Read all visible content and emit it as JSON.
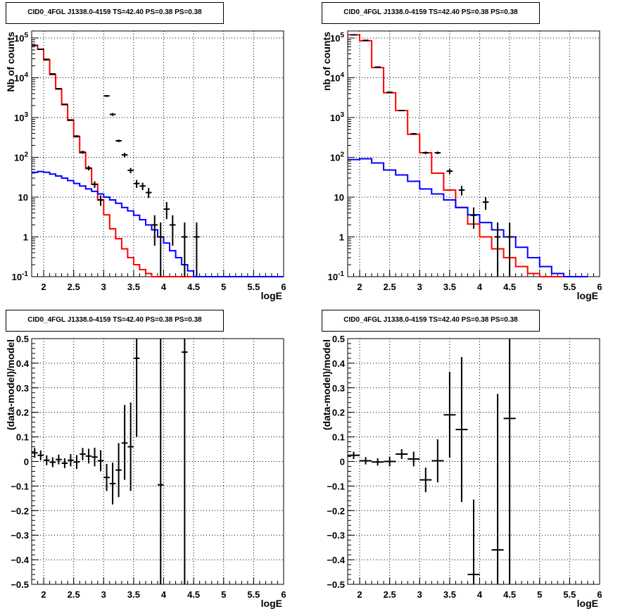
{
  "colors": {
    "data": "#000000",
    "total_model": "#ff0000",
    "component": "#0000ff",
    "grid": "#000000"
  },
  "chart_data": [
    {
      "type": "line",
      "title": "CID0_4FGL J1338.0-4159 TS=42.40 PS=0.38 PS=0.38",
      "xlabel": "logE",
      "ylabel": "Nb of counts",
      "xlim": [
        1.8,
        6.0
      ],
      "ylim": [
        0.1,
        150000
      ],
      "yscale": "log",
      "grid": true,
      "xticks": [
        "2",
        "2.5",
        "3",
        "3.5",
        "4",
        "4.5",
        "5",
        "5.5",
        "6"
      ],
      "yticks": [
        "10^-1",
        "1",
        "10",
        "10^2",
        "10^3",
        "10^4",
        "10^5"
      ],
      "hist_edges": [
        1.8,
        1.9,
        2.0,
        2.1,
        2.2,
        2.3,
        2.4,
        2.5,
        2.6,
        2.7,
        2.8,
        2.9,
        3.0,
        3.1,
        3.2,
        3.3,
        3.4,
        3.5,
        3.6,
        3.7,
        3.8,
        3.9,
        4.0,
        4.1,
        4.2,
        4.3,
        4.4,
        4.5,
        4.6,
        4.7,
        4.8,
        4.9,
        5.0,
        5.1,
        5.2,
        5.3,
        5.4,
        5.5,
        5.6,
        5.7,
        5.8,
        5.9,
        6.0
      ],
      "series": [
        {
          "name": "",
          "kind": "hist",
          "color": "#ff0000",
          "values": [
            65000,
            52000,
            28000,
            12000,
            5200,
            2100,
            850,
            330,
            130,
            52,
            21,
            8.5,
            3.6,
            1.6,
            0.9,
            0.5,
            0.3,
            0.2,
            0.15,
            0.12,
            0.1,
            0.1,
            0.1,
            0.1,
            0.1,
            0.1,
            0.1,
            0.1,
            0.1,
            0.1,
            0.1,
            0.1,
            0.1,
            0.1,
            0.1,
            0.1,
            0.1,
            0.1,
            0.1,
            0.1,
            0.1,
            0.1
          ]
        },
        {
          "name": "",
          "kind": "hist",
          "color": "#0000ff",
          "values": [
            42,
            44,
            42,
            38,
            34,
            30,
            26,
            22,
            19,
            16,
            14,
            12,
            10,
            8.5,
            7,
            5.5,
            4.5,
            3.5,
            2.7,
            2.0,
            1.5,
            1.0,
            0.7,
            0.45,
            0.3,
            0.2,
            0.14,
            0.1,
            0.1,
            0.1,
            0.1,
            0.1,
            0.1,
            0.1,
            0.1,
            0.1,
            0.1,
            0.1,
            0.1,
            0.1,
            0.1,
            0.1
          ]
        },
        {
          "name": "",
          "kind": "points",
          "color": "#000000",
          "points": [
            {
              "x": 1.85,
              "y": 65000,
              "lo": 64000,
              "hi": 66000
            },
            {
              "x": 1.95,
              "y": 52000,
              "lo": 51000,
              "hi": 53000
            },
            {
              "x": 2.05,
              "y": 29000,
              "lo": 28500,
              "hi": 29500
            },
            {
              "x": 2.15,
              "y": 12500,
              "lo": 12300,
              "hi": 12700
            },
            {
              "x": 2.25,
              "y": 5300,
              "lo": 5200,
              "hi": 5400
            },
            {
              "x": 2.35,
              "y": 2150,
              "lo": 2100,
              "hi": 2200
            },
            {
              "x": 2.45,
              "y": 870,
              "lo": 840,
              "hi": 900
            },
            {
              "x": 2.55,
              "y": 340,
              "lo": 320,
              "hi": 360
            },
            {
              "x": 2.65,
              "y": 135,
              "lo": 123,
              "hi": 147
            },
            {
              "x": 2.75,
              "y": 54,
              "lo": 47,
              "hi": 61
            },
            {
              "x": 2.85,
              "y": 21,
              "lo": 17,
              "hi": 25
            },
            {
              "x": 2.95,
              "y": 8.5,
              "lo": 6,
              "hi": 11
            },
            {
              "x": 3.05,
              "y": 3500,
              "lo": 3300,
              "hi": 3700
            },
            {
              "x": 3.15,
              "y": 1200,
              "lo": 1100,
              "hi": 1300
            },
            {
              "x": 3.25,
              "y": 260,
              "lo": 240,
              "hi": 280
            },
            {
              "x": 3.35,
              "y": 115,
              "lo": 100,
              "hi": 130
            },
            {
              "x": 3.45,
              "y": 47,
              "lo": 40,
              "hi": 54
            },
            {
              "x": 3.55,
              "y": 22,
              "lo": 17,
              "hi": 27
            },
            {
              "x": 3.65,
              "y": 19,
              "lo": 15,
              "hi": 23
            },
            {
              "x": 3.75,
              "y": 13,
              "lo": 9.5,
              "hi": 17
            },
            {
              "x": 3.85,
              "y": 2,
              "lo": 0.6,
              "hi": 3.5
            },
            {
              "x": 3.95,
              "y": 1,
              "lo": 0.1,
              "hi": 2.3
            },
            {
              "x": 4.05,
              "y": 5,
              "lo": 2.8,
              "hi": 7.5
            },
            {
              "x": 4.15,
              "y": 2,
              "lo": 0.6,
              "hi": 3.5
            },
            {
              "x": 4.35,
              "y": 1,
              "lo": 0.1,
              "hi": 2.3
            },
            {
              "x": 4.55,
              "y": 1,
              "lo": 0.1,
              "hi": 2.3
            }
          ]
        }
      ]
    },
    {
      "type": "line",
      "title": "CID0_4FGL J1338.0-4159 TS=42.40 PS=0.38 PS=0.38",
      "xlabel": "logE",
      "ylabel": "nb of counts",
      "xlim": [
        1.8,
        6.0
      ],
      "ylim": [
        0.1,
        150000
      ],
      "yscale": "log",
      "grid": true,
      "xticks": [
        "2",
        "2.5",
        "3",
        "3.5",
        "4",
        "4.5",
        "5",
        "5.5",
        "6"
      ],
      "yticks": [
        "10^-1",
        "1",
        "10",
        "10^2",
        "10^3",
        "10^4",
        "10^5"
      ],
      "hist_edges": [
        1.8,
        2.0,
        2.2,
        2.4,
        2.6,
        2.8,
        3.0,
        3.2,
        3.4,
        3.6,
        3.8,
        4.0,
        4.2,
        4.4,
        4.6,
        4.8,
        5.0,
        5.2,
        5.4,
        5.6,
        5.8,
        6.0
      ],
      "series": [
        {
          "name": "",
          "kind": "hist",
          "color": "#ff0000",
          "values": [
            120000,
            85000,
            18000,
            4200,
            1500,
            380,
            130,
            40,
            15,
            5.5,
            2.1,
            1.0,
            0.5,
            0.3,
            0.18,
            0.12,
            0.1,
            0.1,
            0.1,
            0.1
          ]
        },
        {
          "name": "",
          "kind": "hist",
          "color": "#0000ff",
          "values": [
            88,
            92,
            72,
            48,
            36,
            25,
            16,
            12,
            8.5,
            5.5,
            3.6,
            2.3,
            1.5,
            1.0,
            0.55,
            0.3,
            0.18,
            0.12,
            0.1,
            0.1
          ]
        },
        {
          "name": "",
          "kind": "points",
          "color": "#000000",
          "points": [
            {
              "x": 1.9,
              "y": 120000,
              "lo": 119000,
              "hi": 121000
            },
            {
              "x": 2.1,
              "y": 87000,
              "lo": 86000,
              "hi": 88000
            },
            {
              "x": 2.3,
              "y": 18500,
              "lo": 18300,
              "hi": 18700
            },
            {
              "x": 2.5,
              "y": 4300,
              "lo": 4200,
              "hi": 4400
            },
            {
              "x": 2.7,
              "y": 1500,
              "lo": 1460,
              "hi": 1540
            },
            {
              "x": 2.9,
              "y": 390,
              "lo": 370,
              "hi": 410
            },
            {
              "x": 3.1,
              "y": 130,
              "lo": 120,
              "hi": 140
            },
            {
              "x": 3.3,
              "y": 130,
              "lo": 120,
              "hi": 140
            },
            {
              "x": 3.5,
              "y": 45,
              "lo": 38,
              "hi": 52
            },
            {
              "x": 3.7,
              "y": 15,
              "lo": 11,
              "hi": 19
            },
            {
              "x": 3.9,
              "y": 3.5,
              "lo": 1.6,
              "hi": 5.5
            },
            {
              "x": 4.1,
              "y": 7.5,
              "lo": 4.8,
              "hi": 10
            },
            {
              "x": 4.3,
              "y": 1,
              "lo": 0.1,
              "hi": 2.3
            },
            {
              "x": 4.5,
              "y": 1,
              "lo": 0.1,
              "hi": 2.3
            }
          ]
        }
      ]
    },
    {
      "type": "scatter",
      "title": "CID0_4FGL J1338.0-4159 TS=42.40 PS=0.38 PS=0.38",
      "xlabel": "logE",
      "ylabel": "(data-model)/model",
      "xlim": [
        1.8,
        6.0
      ],
      "ylim": [
        -0.5,
        0.5
      ],
      "grid": true,
      "xticks": [
        "2",
        "2.5",
        "3",
        "3.5",
        "4",
        "4.5",
        "5",
        "5.5",
        "6"
      ],
      "yticks": [
        "−0.5",
        "−0.4",
        "−0.3",
        "−0.2",
        "−0.1",
        "0",
        "0.1",
        "0.2",
        "0.3",
        "0.4",
        "0.5"
      ],
      "series": [
        {
          "name": "",
          "color": "#000000",
          "xhalf": 0.05,
          "points": [
            {
              "x": 1.85,
              "y": 0.035,
              "lo": 0.015,
              "hi": 0.055
            },
            {
              "x": 1.95,
              "y": 0.025,
              "lo": 0.005,
              "hi": 0.045
            },
            {
              "x": 2.05,
              "y": 0.005,
              "lo": -0.015,
              "hi": 0.025
            },
            {
              "x": 2.15,
              "y": -0.003,
              "lo": -0.023,
              "hi": 0.017
            },
            {
              "x": 2.25,
              "y": 0.008,
              "lo": -0.012,
              "hi": 0.028
            },
            {
              "x": 2.35,
              "y": -0.007,
              "lo": -0.027,
              "hi": 0.013
            },
            {
              "x": 2.45,
              "y": 0.005,
              "lo": -0.02,
              "hi": 0.03
            },
            {
              "x": 2.55,
              "y": -0.002,
              "lo": -0.03,
              "hi": 0.026
            },
            {
              "x": 2.65,
              "y": 0.03,
              "lo": 0.005,
              "hi": 0.055
            },
            {
              "x": 2.75,
              "y": 0.022,
              "lo": -0.008,
              "hi": 0.052
            },
            {
              "x": 2.85,
              "y": 0.018,
              "lo": -0.02,
              "hi": 0.056
            },
            {
              "x": 2.95,
              "y": 0.003,
              "lo": -0.04,
              "hi": 0.046
            },
            {
              "x": 3.05,
              "y": -0.065,
              "lo": -0.12,
              "hi": -0.01
            },
            {
              "x": 3.15,
              "y": -0.09,
              "lo": -0.175,
              "hi": -0.005
            },
            {
              "x": 3.25,
              "y": -0.035,
              "lo": -0.145,
              "hi": 0.075
            },
            {
              "x": 3.35,
              "y": 0.075,
              "lo": -0.075,
              "hi": 0.23
            },
            {
              "x": 3.45,
              "y": 0.06,
              "lo": -0.12,
              "hi": 0.24
            },
            {
              "x": 3.55,
              "y": 0.42,
              "lo": 0.1,
              "hi": 0.5
            },
            {
              "x": 3.95,
              "y": -0.095,
              "lo": -0.5,
              "hi": 0.5
            },
            {
              "x": 4.35,
              "y": 0.445,
              "lo": -0.5,
              "hi": 0.5
            }
          ]
        }
      ]
    },
    {
      "type": "scatter",
      "title": "CID0_4FGL J1338.0-4159 TS=42.40 PS=0.38 PS=0.38",
      "xlabel": "logE",
      "ylabel": "(data-model)/model",
      "xlim": [
        1.8,
        6.0
      ],
      "ylim": [
        -0.5,
        0.5
      ],
      "grid": true,
      "xticks": [
        "2",
        "2.5",
        "3",
        "3.5",
        "4",
        "4.5",
        "5",
        "5.5",
        "6"
      ],
      "yticks": [
        "−0.5",
        "−0.4",
        "−0.3",
        "−0.2",
        "−0.1",
        "0",
        "0.1",
        "0.2",
        "0.3",
        "0.4",
        "0.5"
      ],
      "series": [
        {
          "name": "",
          "color": "#000000",
          "xhalf": 0.1,
          "points": [
            {
              "x": 1.9,
              "y": 0.025,
              "lo": 0.01,
              "hi": 0.04
            },
            {
              "x": 2.1,
              "y": 0.003,
              "lo": -0.012,
              "hi": 0.018
            },
            {
              "x": 2.3,
              "y": -0.002,
              "lo": -0.017,
              "hi": 0.013
            },
            {
              "x": 2.5,
              "y": 0.0,
              "lo": -0.02,
              "hi": 0.02
            },
            {
              "x": 2.7,
              "y": 0.03,
              "lo": 0.01,
              "hi": 0.05
            },
            {
              "x": 2.9,
              "y": 0.01,
              "lo": -0.02,
              "hi": 0.04
            },
            {
              "x": 3.1,
              "y": -0.075,
              "lo": -0.125,
              "hi": -0.025
            },
            {
              "x": 3.3,
              "y": 0.003,
              "lo": -0.085,
              "hi": 0.09
            },
            {
              "x": 3.5,
              "y": 0.19,
              "lo": 0.015,
              "hi": 0.365
            },
            {
              "x": 3.7,
              "y": 0.13,
              "lo": -0.165,
              "hi": 0.425
            },
            {
              "x": 3.9,
              "y": -0.46,
              "lo": -0.5,
              "hi": -0.155
            },
            {
              "x": 4.3,
              "y": -0.36,
              "lo": -0.5,
              "hi": 0.275
            },
            {
              "x": 4.5,
              "y": 0.175,
              "lo": -0.5,
              "hi": 0.5
            }
          ]
        }
      ]
    }
  ]
}
